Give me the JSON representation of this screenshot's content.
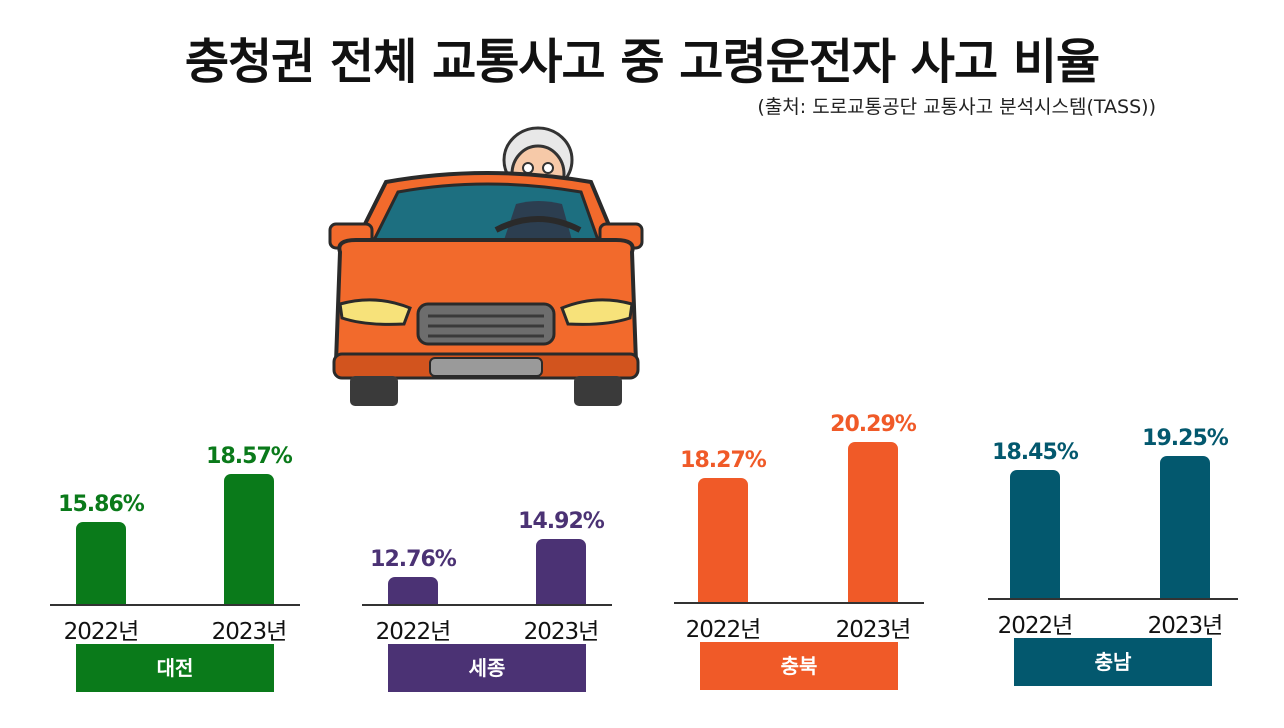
{
  "title": "충청권 전체 교통사고 중 고령운전자 사고 비율",
  "source": "(출처: 도로교통공단 교통사고 분석시스템(TASS))",
  "illustration_icon": "elderly-driver-car-icon",
  "colors": {
    "대전": "#0a7a1a",
    "세종": "#4b3274",
    "충북": "#f05a28",
    "충남": "#03586e"
  },
  "chart_data": {
    "type": "bar",
    "title": "충청권 전체 교통사고 중 고령운전자 사고 비율",
    "categories": [
      "2022년",
      "2023년"
    ],
    "series": [
      {
        "name": "대전",
        "values": [
          15.86,
          18.57
        ],
        "labels": [
          "15.86%",
          "18.57%"
        ]
      },
      {
        "name": "세종",
        "values": [
          12.76,
          14.92
        ],
        "labels": [
          "12.76%",
          "14.92%"
        ]
      },
      {
        "name": "충북",
        "values": [
          18.27,
          20.29
        ],
        "labels": [
          "18.27%",
          "20.29%"
        ]
      },
      {
        "name": "충남",
        "values": [
          18.45,
          19.25
        ],
        "labels": [
          "18.45%",
          "19.25%"
        ]
      }
    ]
  }
}
